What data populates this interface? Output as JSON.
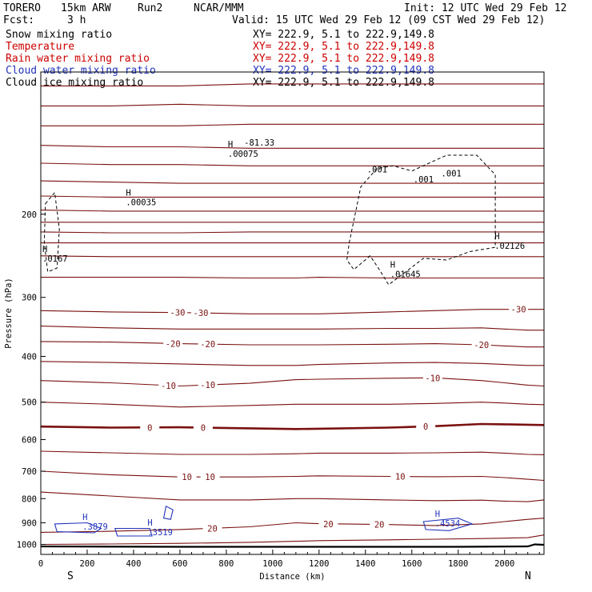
{
  "header": {
    "model": "TORERO",
    "res": "15km ARW",
    "run": "Run2",
    "org": "NCAR/MMM",
    "init": "Init: 12 UTC Wed 29 Feb 12",
    "fcst": "Fcst:",
    "fcst_hours": "3 h",
    "valid": "Valid: 15 UTC Wed 29 Feb 12 (09 CST Wed 29 Feb 12)"
  },
  "legend": [
    {
      "label": "Snow mixing ratio",
      "xy": "XY= 222.9,  5.1 to 222.9,149.8",
      "color": "#000000"
    },
    {
      "label": "Temperature",
      "xy": "XY= 222.9,  5.1 to 222.9,149.8",
      "color": "#cc0000"
    },
    {
      "label": "Rain water mixing ratio",
      "xy": "XY= 222.9,  5.1 to 222.9,149.8",
      "color": "#cc0000"
    },
    {
      "label": "Cloud water mixing ratio",
      "xy": "XY= 222.9,  5.1 to 222.9,149.8",
      "color": "#2233bb"
    },
    {
      "label": "Cloud ice mixing ratio",
      "xy": "XY= 222.9,  5.1 to 222.9,149.8",
      "color": "#000000"
    }
  ],
  "colors": {
    "temperature": "#7a1010",
    "cloud_water": "#2233bb",
    "snow": "#000000",
    "frame": "#000000"
  },
  "chart_data": {
    "type": "line",
    "title": "Temperature",
    "xlabel": "Distance (km)",
    "ylabel": "Pressure (hPa)",
    "xlim": [
      0,
      2170
    ],
    "ylim": [
      1050,
      100
    ],
    "y_scale": "log",
    "x_ticks": [
      0,
      200,
      400,
      600,
      800,
      1000,
      1200,
      1400,
      1600,
      1800,
      2000
    ],
    "y_ticks": [
      200,
      300,
      400,
      500,
      600,
      700,
      800,
      900,
      1000
    ],
    "endpoint_labels": {
      "left": "S",
      "right": "N"
    },
    "x": [
      0,
      300,
      600,
      900,
      1100,
      1200,
      1500,
      1700,
      1900,
      2000,
      2100,
      2170
    ],
    "isotherm_labels": [
      "-30",
      "-20",
      "-10",
      "0",
      "10",
      "20"
    ],
    "series": [
      {
        "name": "-30",
        "values": [
          320,
          322,
          323,
          325,
          325,
          325,
          322,
          320,
          318,
          318,
          318,
          318
        ],
        "labels": [
          [
            590,
            "-30"
          ],
          [
            690,
            "-30"
          ],
          [
            2060,
            "-30"
          ]
        ]
      },
      {
        "name": "-20",
        "values": [
          372,
          373,
          376,
          378,
          378,
          378,
          377,
          376,
          378,
          380,
          382,
          382
        ],
        "labels": [
          [
            570,
            "-20"
          ],
          [
            720,
            "-20"
          ],
          [
            1900,
            "-20"
          ]
        ]
      },
      {
        "name": "-10",
        "values": [
          450,
          455,
          462,
          456,
          448,
          447,
          445,
          444,
          450,
          455,
          460,
          462
        ],
        "labels": [
          [
            550,
            "-10"
          ],
          [
            720,
            "-10"
          ],
          [
            1690,
            "-10"
          ]
        ]
      },
      {
        "name": "0",
        "values": [
          563,
          566,
          565,
          568,
          570,
          569,
          566,
          562,
          556,
          557,
          558,
          559
        ],
        "labels": [
          [
            470,
            "0"
          ],
          [
            700,
            "0"
          ],
          [
            1660,
            "0"
          ]
        ],
        "bold": true
      },
      {
        "name": "10",
        "values": [
          700,
          712,
          720,
          720,
          718,
          716,
          718,
          719,
          718,
          722,
          728,
          732
        ],
        "labels": [
          [
            630,
            "10"
          ],
          [
            730,
            "10"
          ],
          [
            1550,
            "10"
          ]
        ]
      },
      {
        "name": "20",
        "values": [
          943,
          938,
          930,
          918,
          900,
          904,
          908,
          912,
          905,
          895,
          885,
          880
        ],
        "labels": [
          [
            740,
            "20"
          ],
          [
            1240,
            "20"
          ],
          [
            1460,
            "20"
          ]
        ]
      },
      {
        "name": "",
        "values": [
          245,
          246,
          246,
          246,
          246,
          246,
          246,
          246,
          246,
          246,
          246,
          246
        ]
      },
      {
        "name": "",
        "values": [
          230,
          230,
          230,
          230,
          230,
          230,
          230,
          230,
          230,
          230,
          230,
          230
        ]
      },
      {
        "name": "",
        "values": [
          218,
          219,
          219,
          218,
          218,
          218,
          218,
          218,
          218,
          218,
          218,
          218
        ]
      },
      {
        "name": "",
        "values": [
          208,
          208,
          208,
          208,
          208,
          208,
          208,
          208,
          208,
          208,
          208,
          208
        ]
      },
      {
        "name": "",
        "values": [
          196,
          197,
          197,
          197,
          197,
          197,
          197,
          197,
          197,
          197,
          197,
          197
        ]
      },
      {
        "name": "",
        "values": [
          183,
          184,
          184,
          184,
          184,
          184,
          184,
          184,
          184,
          184,
          184,
          184
        ]
      },
      {
        "name": "",
        "values": [
          170,
          171,
          172,
          172,
          172,
          172,
          172,
          172,
          172,
          172,
          172,
          172
        ]
      },
      {
        "name": "",
        "values": [
          156,
          157,
          157,
          158,
          158,
          158,
          158,
          158,
          158,
          158,
          158,
          158
        ]
      },
      {
        "name": "",
        "values": [
          143,
          144,
          144,
          145,
          145,
          145,
          145,
          145,
          145,
          145,
          145,
          145
        ]
      },
      {
        "name": "",
        "values": [
          130,
          130,
          130,
          129,
          129,
          129,
          129,
          129,
          129,
          129,
          129,
          129
        ]
      },
      {
        "name": "",
        "values": [
          118,
          118,
          117,
          118,
          118,
          118,
          118,
          118,
          118,
          118,
          118,
          118
        ]
      },
      {
        "name": "",
        "values": [
          107,
          107,
          107,
          106,
          106,
          106,
          106,
          106,
          106,
          106,
          106,
          106
        ]
      },
      {
        "name": "",
        "values": [
          272,
          272,
          272,
          273,
          273,
          272,
          273,
          273,
          273,
          273,
          273,
          273
        ]
      },
      {
        "name": "",
        "values": [
          345,
          348,
          350,
          350,
          350,
          350,
          349,
          349,
          348,
          350,
          352,
          352
        ]
      },
      {
        "name": "",
        "values": [
          410,
          412,
          415,
          418,
          418,
          416,
          413,
          412,
          414,
          416,
          418,
          418
        ]
      },
      {
        "name": "",
        "values": [
          500,
          505,
          512,
          508,
          505,
          505,
          505,
          503,
          500,
          502,
          505,
          506
        ]
      },
      {
        "name": "",
        "values": [
          635,
          640,
          645,
          645,
          643,
          641,
          641,
          640,
          638,
          641,
          645,
          646
        ]
      },
      {
        "name": "",
        "values": [
          775,
          790,
          805,
          805,
          800,
          800,
          805,
          808,
          806,
          810,
          812,
          805
        ]
      },
      {
        "name": "",
        "values": [
          1000,
          998,
          995,
          990,
          985,
          982,
          978,
          975,
          972,
          970,
          968,
          955
        ]
      }
    ],
    "maxima_labels": [
      {
        "x": 0,
        "y": 250,
        "label": ".0167",
        "mark": "H"
      },
      {
        "x": 360,
        "y": 190,
        "label": ".00035",
        "mark": "H"
      },
      {
        "x": 800,
        "y": 150,
        "label": ".00075",
        "mark": "H"
      },
      {
        "x": 1500,
        "y": 270,
        "label": ".01645",
        "mark": "H"
      },
      {
        "x": 1950,
        "y": 235,
        "label": ".02126",
        "mark": "H"
      },
      {
        "x": 1400,
        "y": 162,
        "label": ".001",
        "mark": ""
      },
      {
        "x": 1600,
        "y": 170,
        "label": ".001",
        "mark": ""
      },
      {
        "x": 1720,
        "y": 165,
        "label": ".001",
        "mark": ""
      },
      {
        "x": 870,
        "y": 142,
        "label": "-81.33",
        "mark": ""
      }
    ],
    "cloud_water_maxima": [
      {
        "x": 180,
        "y": 920,
        "label": ".3879",
        "mark": "H"
      },
      {
        "x": 460,
        "y": 945,
        "label": ".3519",
        "mark": "H"
      },
      {
        "x": 1700,
        "y": 905,
        "label": ".4534",
        "mark": "H"
      }
    ]
  }
}
